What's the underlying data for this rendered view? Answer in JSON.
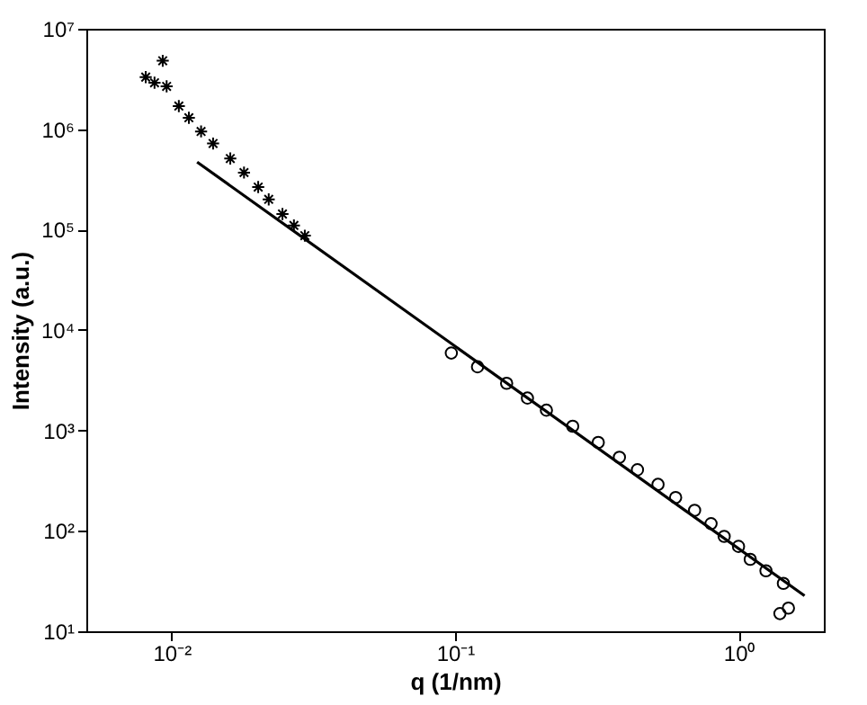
{
  "chart_data": {
    "type": "scatter",
    "xlabel": "q (1/nm)",
    "ylabel": "Intensity (a.u.)",
    "log": "xy",
    "grid": false,
    "xlim": [
      0.005,
      2
    ],
    "ylim": [
      10,
      10000000
    ],
    "xticks": [
      {
        "value": 0.01,
        "label": "10⁻²"
      },
      {
        "value": 0.1,
        "label": "10⁻¹"
      },
      {
        "value": 1,
        "label": "10⁰"
      }
    ],
    "yticks": [
      {
        "value": 10,
        "label": "10¹"
      },
      {
        "value": 100,
        "label": "10²"
      },
      {
        "value": 1000,
        "label": "10³"
      },
      {
        "value": 10000,
        "label": "10⁴"
      },
      {
        "value": 100000,
        "label": "10⁵"
      },
      {
        "value": 1000000,
        "label": "10⁶"
      },
      {
        "value": 10000000,
        "label": "10⁷"
      }
    ],
    "series": [
      {
        "marker": "cross",
        "color": "#000000",
        "x": [
          0.0081,
          0.0087,
          0.0093,
          0.0096,
          0.0106,
          0.0115,
          0.0127,
          0.014,
          0.0161,
          0.018,
          0.0202,
          0.022,
          0.0246,
          0.027,
          0.0295
        ],
        "values": [
          3300000,
          2900000,
          4800000,
          2670000,
          1700000,
          1300000,
          950000,
          720000,
          510000,
          370000,
          265000,
          200000,
          143000,
          110000,
          87000
        ]
      },
      {
        "type": "line",
        "marker": "none",
        "color": "#000000",
        "x": [
          0.0123,
          1.71
        ],
        "values": [
          470000,
          22.6
        ]
      },
      {
        "marker": "circle",
        "color": "#000000",
        "x": [
          0.097,
          0.12,
          0.152,
          0.18,
          0.21,
          0.26,
          0.32,
          0.38,
          0.44,
          0.52,
          0.6,
          0.7,
          0.8,
          0.89,
          1.0,
          1.1,
          1.25,
          1.4,
          1.44,
          1.5
        ],
        "values": [
          5900,
          4300,
          2950,
          2100,
          1590,
          1100,
          760,
          540,
          406,
          290,
          215,
          160,
          118,
          88,
          70,
          52,
          40,
          15,
          30,
          17
        ]
      }
    ]
  }
}
